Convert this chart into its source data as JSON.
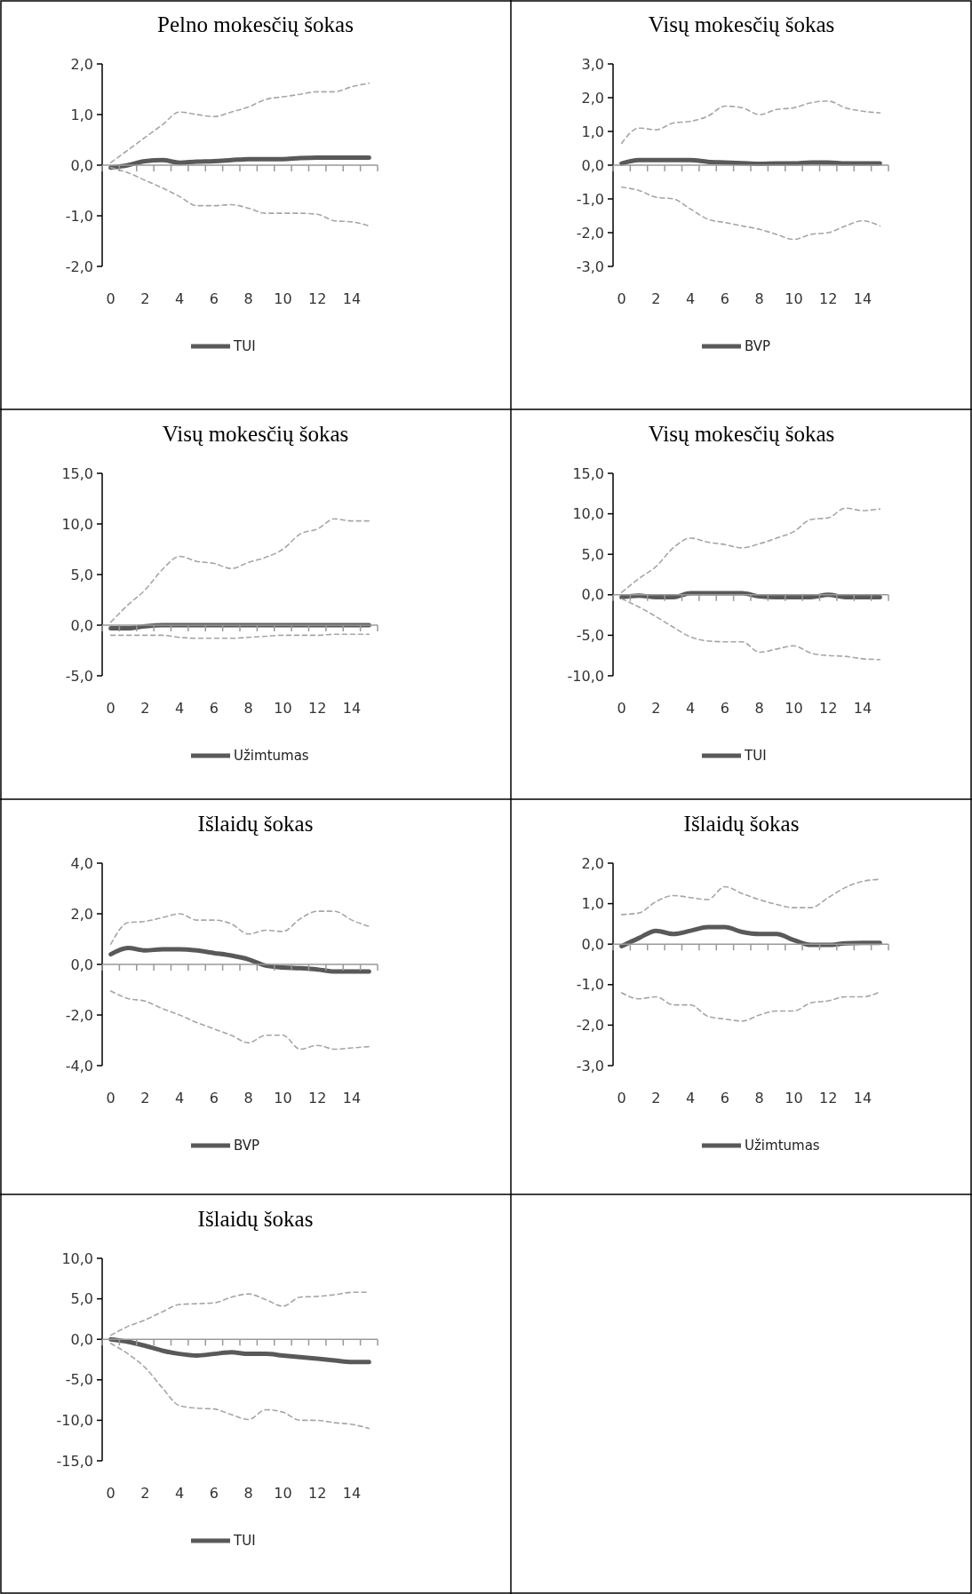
{
  "chart_data": [
    {
      "type": "line",
      "title": "Pelno mokesčių šokas",
      "categories": [
        "0",
        null,
        "2",
        null,
        "4",
        null,
        "6",
        null,
        "8",
        null,
        "10",
        null,
        "12",
        null,
        "14",
        null
      ],
      "ylim": [
        -2,
        2
      ],
      "yticks": [
        {
          "value": -2,
          "label": "-2,0"
        },
        {
          "value": -1,
          "label": "-1,0"
        },
        {
          "value": 0,
          "label": "0,0"
        },
        {
          "value": 1,
          "label": "1,0"
        },
        {
          "value": 2,
          "label": "2,0"
        }
      ],
      "legend": "bottom",
      "series": [
        {
          "name": "TUI",
          "color": "#595959",
          "line_style": "solid",
          "values": [
            -0.05,
            0,
            0.08,
            0.1,
            0.05,
            0.07,
            0.08,
            0.1,
            0.12,
            0.12,
            0.12,
            0.14,
            0.15,
            0.15,
            0.15,
            0.15
          ]
        },
        {
          "color": "#a6a6a6",
          "line_style": "dashed",
          "values": [
            0.05,
            0.3,
            0.55,
            0.8,
            1.05,
            1.0,
            0.96,
            1.05,
            1.15,
            1.3,
            1.35,
            1.4,
            1.45,
            1.45,
            1.55,
            1.62
          ]
        },
        {
          "color": "#a6a6a6",
          "line_style": "dashed",
          "values": [
            -0.05,
            -0.15,
            -0.3,
            -0.45,
            -0.62,
            -0.8,
            -0.8,
            -0.78,
            -0.85,
            -0.95,
            -0.95,
            -0.95,
            -0.97,
            -1.1,
            -1.12,
            -1.2
          ]
        }
      ]
    },
    {
      "type": "line",
      "title": "Visų mokesčių šokas",
      "categories": [
        "0",
        null,
        "2",
        null,
        "4",
        null,
        "6",
        null,
        "8",
        null,
        "10",
        null,
        "12",
        null,
        "14",
        null
      ],
      "ylim": [
        -3,
        3
      ],
      "yticks": [
        {
          "value": -3,
          "label": "-3,0"
        },
        {
          "value": -2,
          "label": "-2,0"
        },
        {
          "value": -1,
          "label": "-1,0"
        },
        {
          "value": 0,
          "label": "0,0"
        },
        {
          "value": 1,
          "label": "1,0"
        },
        {
          "value": 2,
          "label": "2,0"
        },
        {
          "value": 3,
          "label": "3,0"
        }
      ],
      "legend": "bottom",
      "series": [
        {
          "name": "BVP",
          "color": "#595959",
          "line_style": "solid",
          "values": [
            0.05,
            0.15,
            0.15,
            0.15,
            0.15,
            0.1,
            0.08,
            0.06,
            0.04,
            0.05,
            0.05,
            0.08,
            0.08,
            0.05,
            0.05,
            0.05
          ]
        },
        {
          "color": "#a6a6a6",
          "line_style": "dashed",
          "values": [
            0.65,
            1.1,
            1.05,
            1.25,
            1.3,
            1.45,
            1.75,
            1.7,
            1.5,
            1.65,
            1.7,
            1.85,
            1.9,
            1.7,
            1.6,
            1.55
          ]
        },
        {
          "color": "#a6a6a6",
          "line_style": "dashed",
          "values": [
            -0.65,
            -0.75,
            -0.95,
            -1.0,
            -1.3,
            -1.6,
            -1.7,
            -1.8,
            -1.9,
            -2.05,
            -2.2,
            -2.05,
            -2.0,
            -1.8,
            -1.65,
            -1.8
          ]
        }
      ]
    },
    {
      "type": "line",
      "title": "Visų mokesčių šokas",
      "categories": [
        "0",
        null,
        "2",
        null,
        "4",
        null,
        "6",
        null,
        "8",
        null,
        "10",
        null,
        "12",
        null,
        "14",
        null
      ],
      "ylim": [
        -5,
        15
      ],
      "yticks": [
        {
          "value": -5,
          "label": "-5,0"
        },
        {
          "value": 0,
          "label": "0,0"
        },
        {
          "value": 5,
          "label": "5,0"
        },
        {
          "value": 10,
          "label": "10,0"
        },
        {
          "value": 15,
          "label": "15,0"
        }
      ],
      "legend": "bottom",
      "series": [
        {
          "name": "Užimtumas",
          "color": "#595959",
          "line_style": "solid",
          "values": [
            -0.3,
            -0.3,
            -0.1,
            0,
            0,
            0,
            0,
            0,
            0,
            0,
            0,
            0,
            0,
            0,
            0,
            0
          ]
        },
        {
          "color": "#a6a6a6",
          "line_style": "dashed",
          "values": [
            0.3,
            2.0,
            3.5,
            5.5,
            6.8,
            6.3,
            6.1,
            5.6,
            6.2,
            6.7,
            7.5,
            9.0,
            9.5,
            10.5,
            10.3,
            10.3
          ]
        },
        {
          "color": "#a6a6a6",
          "line_style": "dashed",
          "values": [
            -1.0,
            -1.0,
            -1.0,
            -1.0,
            -1.2,
            -1.3,
            -1.3,
            -1.3,
            -1.2,
            -1.1,
            -1.0,
            -1.0,
            -1.0,
            -0.9,
            -0.9,
            -0.9
          ]
        }
      ]
    },
    {
      "type": "line",
      "title": "Visų mokesčių šokas",
      "categories": [
        "0",
        null,
        "2",
        null,
        "4",
        null,
        "6",
        null,
        "8",
        null,
        "10",
        null,
        "12",
        null,
        "14",
        null
      ],
      "ylim": [
        -10,
        15
      ],
      "yticks": [
        {
          "value": -10,
          "label": "-10,0"
        },
        {
          "value": -5,
          "label": "-5,0"
        },
        {
          "value": 0,
          "label": "0,0"
        },
        {
          "value": 5,
          "label": "5,0"
        },
        {
          "value": 10,
          "label": "10,0"
        },
        {
          "value": 15,
          "label": "15,0"
        }
      ],
      "legend": "bottom",
      "series": [
        {
          "name": "TUI",
          "color": "#595959",
          "line_style": "solid",
          "values": [
            -0.3,
            -0.1,
            -0.3,
            -0.3,
            0.2,
            0.2,
            0.2,
            0.2,
            -0.2,
            -0.3,
            -0.3,
            -0.3,
            0,
            -0.3,
            -0.3,
            -0.3
          ]
        },
        {
          "color": "#a6a6a6",
          "line_style": "dashed",
          "values": [
            0.3,
            2.0,
            3.5,
            5.8,
            7.0,
            6.5,
            6.2,
            5.8,
            6.3,
            7.0,
            7.8,
            9.3,
            9.5,
            10.7,
            10.4,
            10.6
          ]
        },
        {
          "color": "#a6a6a6",
          "line_style": "dashed",
          "values": [
            -0.5,
            -1.5,
            -2.7,
            -4.0,
            -5.2,
            -5.7,
            -5.8,
            -5.8,
            -7.1,
            -6.7,
            -6.3,
            -7.2,
            -7.5,
            -7.6,
            -7.9,
            -8.0
          ]
        }
      ]
    },
    {
      "type": "line",
      "title": "Išlaidų šokas",
      "categories": [
        "0",
        null,
        "2",
        null,
        "4",
        null,
        "6",
        null,
        "8",
        null,
        "10",
        null,
        "12",
        null,
        "14",
        null
      ],
      "ylim": [
        -4,
        4
      ],
      "yticks": [
        {
          "value": -4,
          "label": "-4,0"
        },
        {
          "value": -2,
          "label": "-2,0"
        },
        {
          "value": 0,
          "label": "0,0"
        },
        {
          "value": 2,
          "label": "2,0"
        },
        {
          "value": 4,
          "label": "4,0"
        }
      ],
      "legend": "bottom",
      "series": [
        {
          "name": "BVP",
          "color": "#595959",
          "line_style": "solid",
          "values": [
            0.4,
            0.65,
            0.55,
            0.6,
            0.6,
            0.55,
            0.45,
            0.35,
            0.2,
            -0.05,
            -0.12,
            -0.15,
            -0.2,
            -0.28,
            -0.28,
            -0.28
          ]
        },
        {
          "color": "#a6a6a6",
          "line_style": "dashed",
          "values": [
            0.8,
            1.65,
            1.7,
            1.85,
            2.0,
            1.75,
            1.75,
            1.6,
            1.2,
            1.35,
            1.3,
            1.8,
            2.1,
            2.1,
            1.75,
            1.5
          ]
        },
        {
          "color": "#a6a6a6",
          "line_style": "dashed",
          "values": [
            -1.05,
            -1.35,
            -1.45,
            -1.75,
            -2.0,
            -2.3,
            -2.55,
            -2.8,
            -3.1,
            -2.8,
            -2.8,
            -3.35,
            -3.2,
            -3.35,
            -3.3,
            -3.25
          ]
        }
      ]
    },
    {
      "type": "line",
      "title": "Išlaidų šokas",
      "categories": [
        "0",
        null,
        "2",
        null,
        "4",
        null,
        "6",
        null,
        "8",
        null,
        "10",
        null,
        "12",
        null,
        "14",
        null
      ],
      "ylim": [
        -3,
        2
      ],
      "yticks": [
        {
          "value": -3,
          "label": "-3,0"
        },
        {
          "value": -2,
          "label": "-2,0"
        },
        {
          "value": -1,
          "label": "-1,0"
        },
        {
          "value": 0,
          "label": "0,0"
        },
        {
          "value": 1,
          "label": "1,0"
        },
        {
          "value": 2,
          "label": "2,0"
        }
      ],
      "legend": "bottom",
      "series": [
        {
          "name": "Užimtumas",
          "color": "#595959",
          "line_style": "solid",
          "values": [
            -0.05,
            0.15,
            0.33,
            0.25,
            0.33,
            0.42,
            0.42,
            0.3,
            0.25,
            0.25,
            0.1,
            -0.02,
            -0.02,
            0.02,
            0.03,
            0.03
          ]
        },
        {
          "color": "#a6a6a6",
          "line_style": "dashed",
          "values": [
            0.73,
            0.77,
            1.05,
            1.2,
            1.15,
            1.1,
            1.42,
            1.25,
            1.1,
            0.98,
            0.9,
            0.9,
            1.15,
            1.4,
            1.55,
            1.6
          ]
        },
        {
          "color": "#a6a6a6",
          "line_style": "dashed",
          "values": [
            -1.2,
            -1.35,
            -1.3,
            -1.5,
            -1.5,
            -1.78,
            -1.85,
            -1.9,
            -1.75,
            -1.65,
            -1.65,
            -1.45,
            -1.4,
            -1.3,
            -1.3,
            -1.18
          ]
        }
      ]
    },
    {
      "type": "line",
      "title": "Išlaidų šokas",
      "categories": [
        "0",
        null,
        "2",
        null,
        "4",
        null,
        "6",
        null,
        "8",
        null,
        "10",
        null,
        "12",
        null,
        "14",
        null
      ],
      "ylim": [
        -15,
        10
      ],
      "yticks": [
        {
          "value": -15,
          "label": "-15,0"
        },
        {
          "value": -10,
          "label": "-10,0"
        },
        {
          "value": -5,
          "label": "-5,0"
        },
        {
          "value": 0,
          "label": "0,0"
        },
        {
          "value": 5,
          "label": "5,0"
        },
        {
          "value": 10,
          "label": "10,0"
        }
      ],
      "legend": "bottom",
      "series": [
        {
          "name": "TUI",
          "color": "#595959",
          "line_style": "solid",
          "values": [
            0,
            -0.3,
            -0.8,
            -1.4,
            -1.8,
            -2.0,
            -1.8,
            -1.6,
            -1.8,
            -1.8,
            -2.0,
            -2.2,
            -2.4,
            -2.6,
            -2.8,
            -2.8
          ]
        },
        {
          "color": "#a6a6a6",
          "line_style": "dashed",
          "values": [
            0.5,
            1.6,
            2.4,
            3.4,
            4.3,
            4.4,
            4.5,
            5.2,
            5.6,
            4.9,
            4.1,
            5.2,
            5.3,
            5.5,
            5.8,
            5.8
          ]
        },
        {
          "color": "#a6a6a6",
          "line_style": "dashed",
          "values": [
            -0.5,
            -1.8,
            -3.5,
            -6.0,
            -8.2,
            -8.5,
            -8.6,
            -9.3,
            -9.9,
            -8.7,
            -9.0,
            -10.0,
            -10.0,
            -10.3,
            -10.5,
            -11.0
          ]
        }
      ]
    }
  ]
}
